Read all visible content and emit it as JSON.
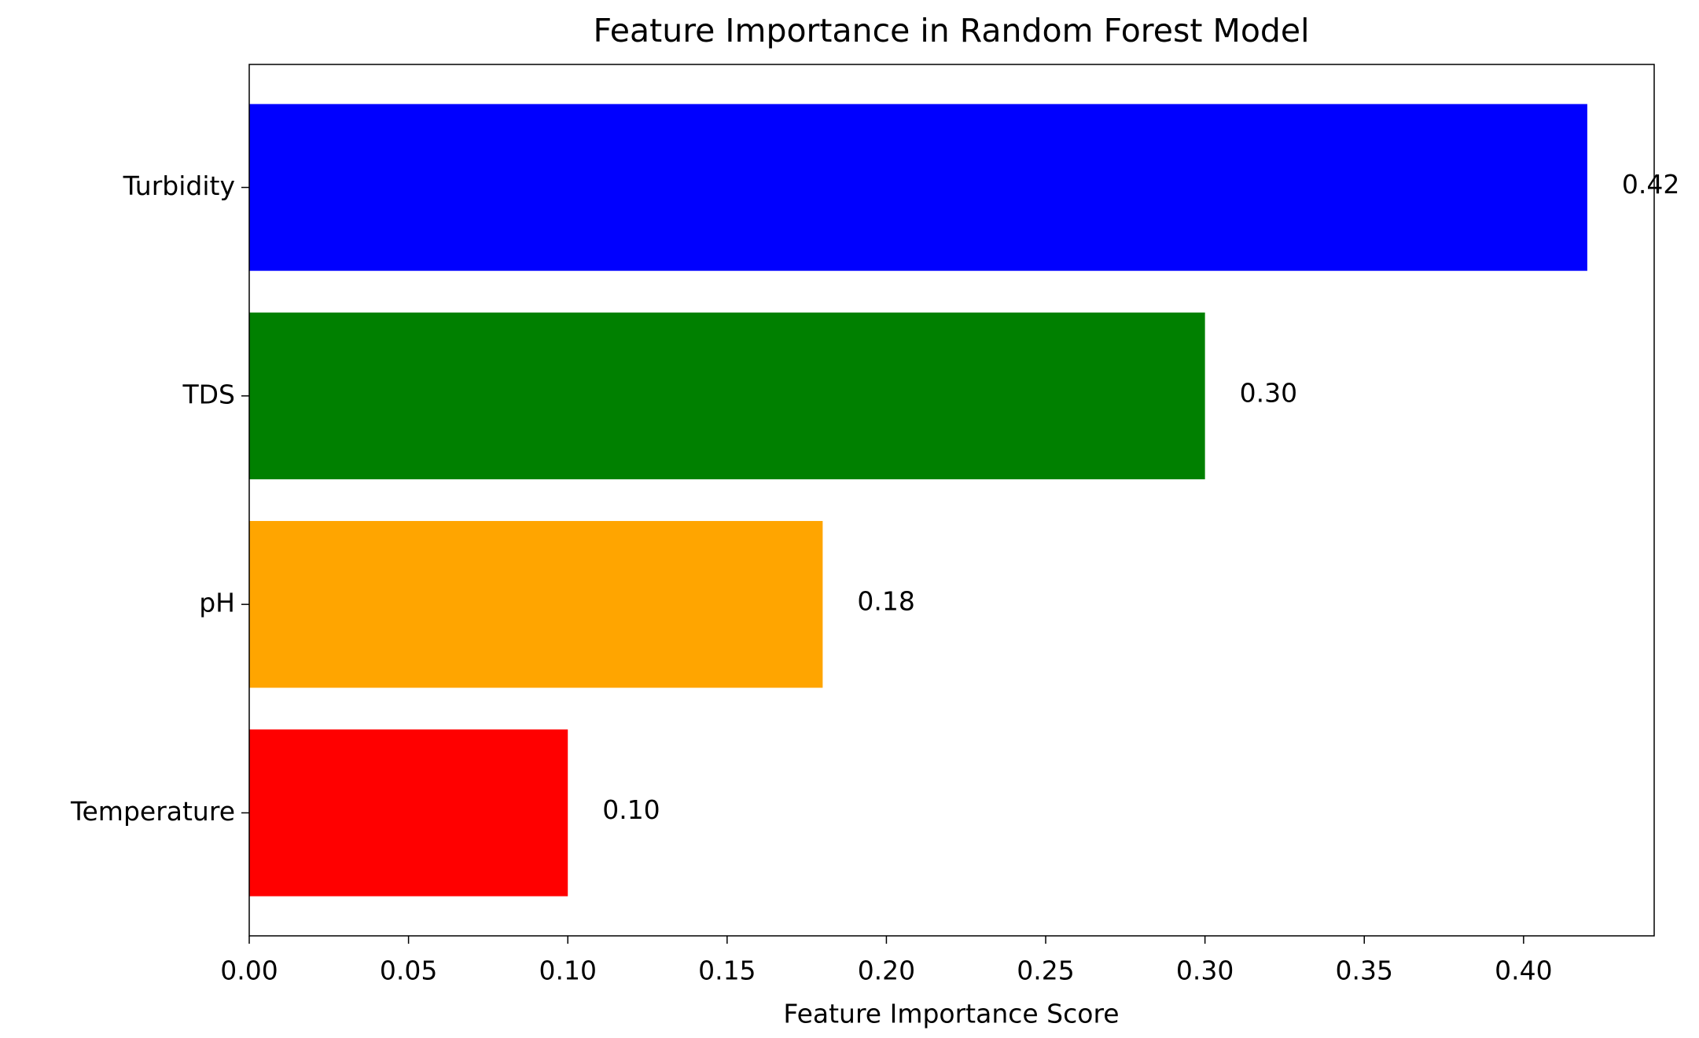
{
  "chart_data": {
    "type": "barh",
    "title": "Feature Importance in Random Forest Model",
    "x_label": "Feature Importance Score",
    "categories": [
      "Turbidity",
      "TDS",
      "pH",
      "Temperature"
    ],
    "values": [
      0.42,
      0.3,
      0.18,
      0.1
    ],
    "value_labels": [
      "0.42",
      "0.30",
      "0.18",
      "0.10"
    ],
    "colors": [
      "#0000ff",
      "#008000",
      "#ffa500",
      "#ff0000"
    ],
    "xlim": [
      0,
      0.441
    ],
    "xticks": [
      {
        "value": 0,
        "label": "0.00"
      },
      {
        "value": 0.05,
        "label": "0.05"
      },
      {
        "value": 0.1,
        "label": "0.10"
      },
      {
        "value": 0.15,
        "label": "0.15"
      },
      {
        "value": 0.2,
        "label": "0.20"
      },
      {
        "value": 0.25,
        "label": "0.25"
      },
      {
        "value": 0.3,
        "label": "0.30"
      },
      {
        "value": 0.35,
        "label": "0.35"
      },
      {
        "value": 0.4,
        "label": "0.40"
      }
    ],
    "grid": false
  }
}
